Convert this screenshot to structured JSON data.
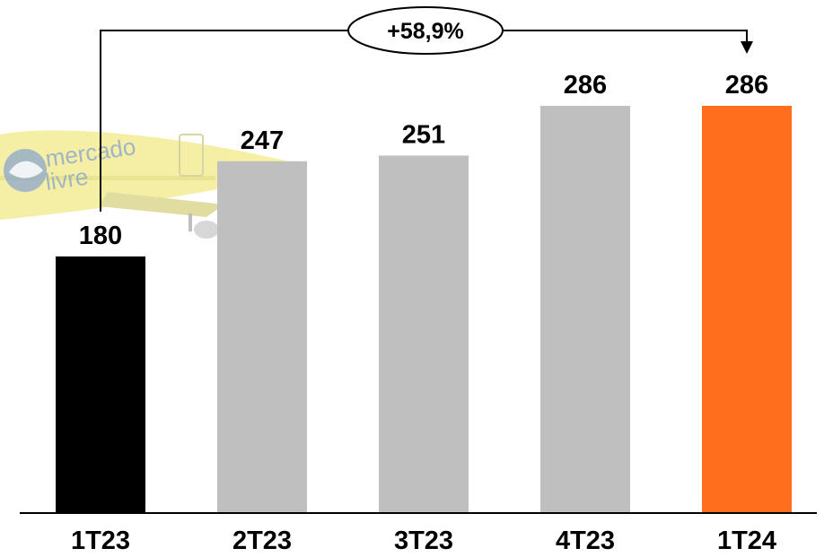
{
  "chart_data": {
    "type": "bar",
    "title": "",
    "xlabel": "",
    "ylabel": "",
    "categories": [
      "1T23",
      "2T23",
      "3T23",
      "4T23",
      "1T24"
    ],
    "values": [
      180,
      247,
      251,
      286,
      286
    ],
    "value_labels": [
      "180",
      "247",
      "251",
      "286",
      "286"
    ],
    "bar_colors": [
      "#000000",
      "#bfbfbf",
      "#bfbfbf",
      "#bfbfbf",
      "#fe6e1d"
    ],
    "ylim": [
      0,
      286
    ],
    "grid": false,
    "legend": "none",
    "annotation": {
      "text": "+58,9%",
      "from_category": "1T23",
      "to_category": "1T24"
    }
  },
  "background_image": {
    "icon": "mercado-livre-airplane-watermark",
    "logo_text_line1": "mercado",
    "logo_text_line2": "livre",
    "body_color": "#ece35a"
  }
}
